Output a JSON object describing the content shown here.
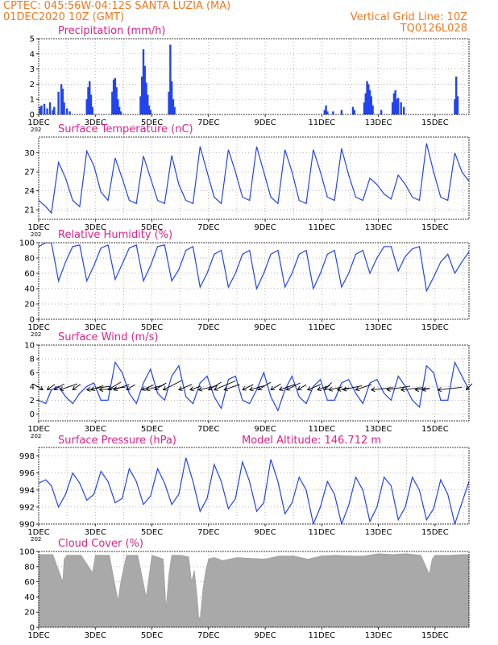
{
  "header": {
    "line1_left": "CPTEC:   045:56W-04:12S  SANTA LUZIA (MA)",
    "line2_left": "01DEC2020 10Z (GMT)",
    "line1_right": "Vertical Grid Line: 10Z",
    "line2_right": "TQ0126L028"
  },
  "colors": {
    "header": "#f07820",
    "title": "#e0208a",
    "series": "#2244ee",
    "cloud": "#a9a9a9",
    "grid": "#999999"
  },
  "chart_data": [
    {
      "id": "precip",
      "type": "bar",
      "title": "Precipitation (mm/h)",
      "ylim": [
        0,
        5
      ],
      "yticks": [
        0,
        1,
        2,
        3,
        4,
        5
      ],
      "xticks": [
        "1DEC",
        "3DEC",
        "5DEC",
        "7DEC",
        "9DEC",
        "11DEC",
        "13DEC",
        "15DEC"
      ],
      "year_label": "202",
      "x_start_day": 1.0,
      "x_end_day": 16.2,
      "x": [
        1.05,
        1.1,
        1.2,
        1.3,
        1.4,
        1.5,
        1.55,
        1.7,
        1.8,
        1.85,
        1.9,
        2.0,
        2.1,
        2.7,
        2.75,
        2.8,
        2.85,
        2.9,
        3.6,
        3.65,
        3.7,
        3.75,
        3.8,
        3.85,
        3.9,
        4.6,
        4.65,
        4.7,
        4.75,
        4.8,
        4.85,
        4.9,
        4.95,
        5.6,
        5.65,
        5.7,
        5.75,
        5.8,
        11.1,
        11.15,
        11.2,
        11.4,
        11.7,
        12.1,
        12.15,
        12.5,
        12.55,
        12.6,
        12.65,
        12.7,
        12.75,
        12.8,
        13.1,
        13.5,
        13.55,
        13.6,
        13.65,
        13.7,
        13.8,
        13.9,
        15.7,
        15.75,
        15.8
      ],
      "values": [
        0.5,
        0.6,
        0.7,
        0.4,
        0.8,
        0.3,
        0.5,
        1.5,
        2.0,
        1.7,
        0.8,
        0.4,
        0.2,
        1.0,
        1.8,
        2.2,
        1.3,
        0.5,
        1.5,
        2.3,
        2.4,
        1.8,
        1.0,
        0.5,
        0.2,
        1.2,
        2.5,
        4.3,
        3.2,
        2.1,
        1.3,
        0.6,
        0.3,
        1.5,
        4.6,
        2.2,
        1.0,
        0.5,
        0.3,
        0.6,
        0.2,
        0.2,
        0.3,
        0.5,
        0.3,
        0.8,
        1.4,
        2.2,
        2.0,
        1.6,
        1.2,
        0.6,
        0.3,
        0.8,
        1.4,
        1.6,
        1.0,
        1.1,
        0.8,
        0.5,
        1.0,
        2.5,
        1.2
      ]
    },
    {
      "id": "temp",
      "type": "line",
      "title": "Surface Temperature (nC)",
      "ylim": [
        19.5,
        32.5
      ],
      "yticks": [
        21,
        24,
        27,
        30
      ],
      "xticks": [
        "1DEC",
        "3DEC",
        "5DEC",
        "7DEC",
        "9DEC",
        "11DEC",
        "13DEC",
        "15DEC"
      ],
      "year_label": "202",
      "x_start_day": 1.0,
      "x_end_day": 16.2,
      "x": [
        1.0,
        1.25,
        1.45,
        1.7,
        1.95,
        2.2,
        2.45,
        2.7,
        2.95,
        3.2,
        3.45,
        3.7,
        3.95,
        4.2,
        4.45,
        4.7,
        4.95,
        5.2,
        5.45,
        5.7,
        5.95,
        6.2,
        6.45,
        6.7,
        6.95,
        7.2,
        7.45,
        7.7,
        7.95,
        8.2,
        8.45,
        8.7,
        8.95,
        9.2,
        9.45,
        9.7,
        9.95,
        10.2,
        10.45,
        10.7,
        10.95,
        11.2,
        11.45,
        11.7,
        11.95,
        12.2,
        12.45,
        12.7,
        12.95,
        13.2,
        13.45,
        13.7,
        13.95,
        14.2,
        14.45,
        14.7,
        14.95,
        15.2,
        15.45,
        15.7,
        15.95,
        16.2
      ],
      "values": [
        22.5,
        21.5,
        20.5,
        28.5,
        26,
        22.5,
        21.5,
        30.3,
        28,
        23.8,
        22.5,
        29.2,
        26,
        22.5,
        22,
        29.5,
        26,
        22.5,
        22,
        29.6,
        25,
        22.5,
        22,
        31,
        27,
        23,
        22,
        30.5,
        27,
        23,
        22.5,
        31,
        27,
        23,
        22,
        30.5,
        27,
        22.5,
        22,
        30.5,
        27,
        23,
        22.5,
        30.7,
        26.5,
        23,
        22.5,
        26,
        25,
        23.5,
        22.7,
        26.5,
        25,
        23,
        22.5,
        31.5,
        27,
        23,
        22.5,
        30,
        27,
        25.5
      ]
    },
    {
      "id": "rh",
      "type": "line",
      "title": "Relative Humidity (%)",
      "ylim": [
        0,
        100
      ],
      "yticks": [
        0,
        20,
        40,
        60,
        80,
        100
      ],
      "xticks": [
        "1DEC",
        "3DEC",
        "5DEC",
        "7DEC",
        "9DEC",
        "11DEC",
        "13DEC",
        "15DEC"
      ],
      "year_label": "202",
      "x_start_day": 1.0,
      "x_end_day": 16.2,
      "x": [
        1.0,
        1.25,
        1.45,
        1.7,
        1.95,
        2.2,
        2.45,
        2.7,
        2.95,
        3.2,
        3.45,
        3.7,
        3.95,
        4.2,
        4.45,
        4.7,
        4.95,
        5.2,
        5.45,
        5.7,
        5.95,
        6.2,
        6.45,
        6.7,
        6.95,
        7.2,
        7.45,
        7.7,
        7.95,
        8.2,
        8.45,
        8.7,
        8.95,
        9.2,
        9.45,
        9.7,
        9.95,
        10.2,
        10.45,
        10.7,
        10.95,
        11.2,
        11.45,
        11.7,
        11.95,
        12.2,
        12.45,
        12.7,
        12.95,
        13.2,
        13.45,
        13.7,
        13.95,
        14.2,
        14.45,
        14.7,
        14.95,
        15.2,
        15.45,
        15.7,
        15.95,
        16.2
      ],
      "values": [
        95,
        100,
        100,
        50,
        75,
        95,
        97,
        50,
        70,
        93,
        97,
        52,
        72,
        93,
        97,
        50,
        70,
        95,
        97,
        50,
        65,
        90,
        95,
        42,
        60,
        85,
        90,
        42,
        60,
        85,
        90,
        40,
        60,
        85,
        90,
        42,
        60,
        85,
        90,
        40,
        60,
        85,
        90,
        42,
        60,
        85,
        90,
        60,
        80,
        95,
        95,
        63,
        82,
        92,
        95,
        37,
        55,
        75,
        85,
        60,
        75,
        88
      ]
    },
    {
      "id": "wind",
      "type": "line",
      "title": "Surface Wind (m/s)",
      "ylim": [
        -1,
        10
      ],
      "yticks": [
        0,
        2,
        4,
        6,
        8,
        10
      ],
      "xticks": [
        "1DEC",
        "3DEC",
        "5DEC",
        "7DEC",
        "9DEC",
        "11DEC",
        "13DEC",
        "15DEC"
      ],
      "year_label": "202",
      "x_start_day": 1.0,
      "x_end_day": 16.2,
      "x": [
        1.0,
        1.25,
        1.45,
        1.7,
        1.95,
        2.2,
        2.45,
        2.7,
        2.95,
        3.2,
        3.45,
        3.7,
        3.95,
        4.2,
        4.45,
        4.7,
        4.95,
        5.2,
        5.45,
        5.7,
        5.95,
        6.2,
        6.45,
        6.7,
        6.95,
        7.2,
        7.45,
        7.7,
        7.95,
        8.2,
        8.45,
        8.7,
        8.95,
        9.2,
        9.45,
        9.7,
        9.95,
        10.2,
        10.45,
        10.7,
        10.95,
        11.2,
        11.45,
        11.7,
        11.95,
        12.2,
        12.45,
        12.7,
        12.95,
        13.2,
        13.45,
        13.7,
        13.95,
        14.2,
        14.45,
        14.7,
        14.95,
        15.2,
        15.45,
        15.7,
        15.95,
        16.2
      ],
      "values": [
        2.0,
        1.5,
        3.5,
        4.0,
        2.5,
        1.5,
        3.0,
        4.0,
        4.5,
        2.0,
        2.0,
        7.5,
        6.0,
        3.0,
        1.5,
        4.5,
        6.5,
        3.0,
        2.0,
        5.5,
        7.0,
        2.5,
        1.5,
        4.5,
        5.5,
        2.5,
        0.8,
        5.0,
        5.5,
        2.0,
        1.5,
        3.5,
        6.0,
        2.5,
        0.5,
        3.5,
        5.5,
        2.5,
        1.5,
        4.0,
        5.0,
        2.0,
        2.0,
        4.5,
        5.0,
        3.0,
        1.5,
        4.5,
        5.0,
        3.0,
        2.0,
        5.5,
        4.0,
        2.0,
        1.0,
        7.0,
        6.0,
        2.0,
        2.0,
        7.5,
        5.5,
        3.5
      ],
      "vectors": [
        {
          "x": 1.15,
          "dir": 315,
          "len": 3.5
        },
        {
          "x": 1.3,
          "dir": 40,
          "len": 3.0
        },
        {
          "x": 1.55,
          "dir": 45,
          "len": 3.5
        },
        {
          "x": 1.75,
          "dir": 60,
          "len": 5.0
        },
        {
          "x": 2.2,
          "dir": 40,
          "len": 3.0
        },
        {
          "x": 2.7,
          "dir": 75,
          "len": 6.0
        },
        {
          "x": 2.85,
          "dir": 60,
          "len": 3.5
        },
        {
          "x": 3.15,
          "dir": 80,
          "len": 6.5
        },
        {
          "x": 3.45,
          "dir": 45,
          "len": 4.5
        },
        {
          "x": 3.65,
          "dir": 60,
          "len": 4.5
        },
        {
          "x": 4.1,
          "dir": 45,
          "len": 3.0
        },
        {
          "x": 4.65,
          "dir": 55,
          "len": 3.5
        },
        {
          "x": 4.8,
          "dir": 65,
          "len": 5.0
        },
        {
          "x": 5.1,
          "dir": 45,
          "len": 4.0
        },
        {
          "x": 5.4,
          "dir": 50,
          "len": 6.0
        },
        {
          "x": 5.95,
          "dir": 55,
          "len": 4.0
        },
        {
          "x": 6.35,
          "dir": 60,
          "len": 3.0
        },
        {
          "x": 6.65,
          "dir": 70,
          "len": 5.0
        },
        {
          "x": 7.0,
          "dir": 45,
          "len": 4.5
        },
        {
          "x": 7.2,
          "dir": 55,
          "len": 6.5
        },
        {
          "x": 7.55,
          "dir": 60,
          "len": 4.5
        },
        {
          "x": 8.2,
          "dir": 50,
          "len": 3.5
        },
        {
          "x": 8.45,
          "dir": 65,
          "len": 4.0
        },
        {
          "x": 8.75,
          "dir": 45,
          "len": 4.5
        },
        {
          "x": 9.2,
          "dir": 45,
          "len": 3.5
        },
        {
          "x": 9.5,
          "dir": 60,
          "len": 4.5
        },
        {
          "x": 9.75,
          "dir": 50,
          "len": 4.5
        },
        {
          "x": 10.15,
          "dir": 45,
          "len": 3.0
        },
        {
          "x": 10.5,
          "dir": 55,
          "len": 4.0
        },
        {
          "x": 10.85,
          "dir": 60,
          "len": 3.5
        },
        {
          "x": 11.1,
          "dir": 30,
          "len": 3.5
        },
        {
          "x": 11.25,
          "dir": 70,
          "len": 3.5
        },
        {
          "x": 11.55,
          "dir": 75,
          "len": 3.0
        },
        {
          "x": 11.75,
          "dir": 70,
          "len": 5.0
        },
        {
          "x": 12.2,
          "dir": 60,
          "len": 4.5
        },
        {
          "x": 12.75,
          "dir": 80,
          "len": 5.5
        },
        {
          "x": 13.3,
          "dir": 75,
          "len": 6.0
        },
        {
          "x": 13.8,
          "dir": 80,
          "len": 5.5
        },
        {
          "x": 14.3,
          "dir": 80,
          "len": 3.5
        },
        {
          "x": 14.55,
          "dir": 75,
          "len": 2.0
        },
        {
          "x": 15.1,
          "dir": 80,
          "len": 6.0
        },
        {
          "x": 16.1,
          "dir": 30,
          "len": 3.0
        }
      ]
    },
    {
      "id": "pressure",
      "type": "line",
      "title": "Surface Pressure (hPa)",
      "annotation": "Model Altitude: 146.712 m",
      "ylim": [
        990,
        999
      ],
      "yticks": [
        990,
        992,
        994,
        996,
        998
      ],
      "xticks": [
        "1DEC",
        "3DEC",
        "5DEC",
        "7DEC",
        "9DEC",
        "11DEC",
        "13DEC",
        "15DEC"
      ],
      "year_label": "202",
      "x_start_day": 1.0,
      "x_end_day": 16.2,
      "x": [
        1.0,
        1.25,
        1.45,
        1.7,
        1.95,
        2.2,
        2.45,
        2.7,
        2.95,
        3.2,
        3.45,
        3.7,
        3.95,
        4.2,
        4.45,
        4.7,
        4.95,
        5.2,
        5.45,
        5.7,
        5.95,
        6.2,
        6.45,
        6.7,
        6.95,
        7.2,
        7.45,
        7.7,
        7.95,
        8.2,
        8.45,
        8.7,
        8.95,
        9.2,
        9.45,
        9.7,
        9.95,
        10.2,
        10.45,
        10.7,
        10.95,
        11.2,
        11.45,
        11.7,
        11.95,
        12.2,
        12.45,
        12.7,
        12.95,
        13.2,
        13.45,
        13.7,
        13.95,
        14.2,
        14.45,
        14.7,
        14.95,
        15.2,
        15.45,
        15.7,
        15.95,
        16.2
      ],
      "values": [
        994.8,
        995.2,
        994.5,
        992,
        993.5,
        996,
        994.8,
        992.8,
        993.5,
        996.2,
        995,
        992.5,
        993,
        996.5,
        995,
        992.3,
        993.3,
        996.5,
        994.8,
        992.3,
        993.5,
        997.8,
        995,
        991.5,
        993,
        997,
        995,
        991.8,
        993,
        997.3,
        995,
        991.5,
        992.5,
        997.6,
        995,
        991.2,
        992.5,
        995.5,
        994,
        990,
        992,
        995,
        993.5,
        990,
        992.2,
        995.5,
        994,
        990.3,
        992,
        995.5,
        994.5,
        990.5,
        992,
        995.5,
        994,
        990.5,
        991.8,
        995.2,
        993.5,
        990,
        992.5,
        995
      ]
    },
    {
      "id": "cloud",
      "type": "area",
      "title": "Cloud Cover (%)",
      "ylim": [
        0,
        100
      ],
      "yticks": [
        0,
        20,
        40,
        60,
        80,
        100
      ],
      "xticks": [
        "1DEC",
        "3DEC",
        "5DEC",
        "7DEC",
        "9DEC",
        "11DEC",
        "13DEC",
        "15DEC"
      ],
      "x_start_day": 1.0,
      "x_end_day": 16.2,
      "x": [
        1.0,
        1.5,
        1.85,
        1.9,
        2.0,
        2.5,
        2.9,
        3.0,
        3.5,
        3.8,
        3.9,
        4.1,
        4.5,
        4.8,
        4.85,
        5.0,
        5.4,
        5.5,
        5.6,
        5.7,
        6.0,
        6.3,
        6.4,
        6.5,
        6.6,
        6.65,
        6.7,
        6.75,
        6.8,
        6.9,
        7.0,
        7.2,
        7.5,
        8.0,
        9.0,
        9.5,
        10.0,
        10.5,
        11.0,
        11.5,
        12.0,
        12.5,
        13.0,
        13.5,
        14.0,
        14.5,
        14.8,
        14.9,
        15.0,
        15.5,
        16.0,
        16.2
      ],
      "values": [
        96,
        96,
        60,
        90,
        95,
        95,
        72,
        95,
        95,
        35,
        60,
        95,
        95,
        40,
        55,
        95,
        90,
        25,
        70,
        95,
        95,
        93,
        60,
        75,
        40,
        15,
        10,
        30,
        50,
        75,
        90,
        92,
        88,
        92,
        90,
        94,
        94,
        90,
        94,
        95,
        94,
        94,
        97,
        96,
        97,
        95,
        70,
        90,
        95,
        95,
        96,
        96
      ]
    }
  ]
}
